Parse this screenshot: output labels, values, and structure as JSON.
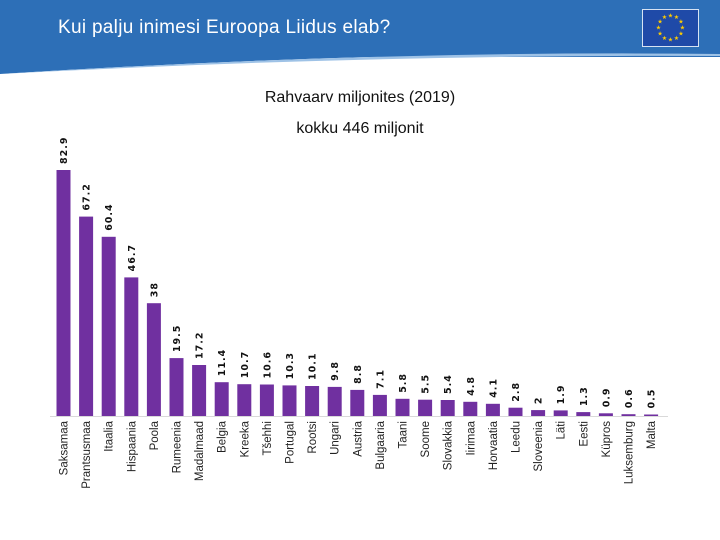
{
  "slide": {
    "title": "Kui palju inimesi Euroopa Liidus elab?",
    "accent_color": "#2d6fb7",
    "logo": "eu-flag-icon"
  },
  "chart_data": {
    "type": "bar",
    "title": "Rahvaarv miljonites (2019)",
    "subtitle": "kokku 446 miljonit",
    "xlabel": "",
    "ylabel": "",
    "ylim": [
      0,
      82.9
    ],
    "grid": false,
    "legend": "none",
    "bar_color": "#7030a0",
    "categories": [
      "Saksamaa",
      "Prantsusmaa",
      "Itaalia",
      "Hispaania",
      "Poola",
      "Rumeenia",
      "Madalmaad",
      "Belgia",
      "Kreeka",
      "Tšehhi",
      "Portugal",
      "Rootsi",
      "Ungari",
      "Austria",
      "Bulgaaria",
      "Taani",
      "Soome",
      "Slovakkia",
      "Iirimaa",
      "Horvaatia",
      "Leedu",
      "Sloveenia",
      "Läti",
      "Eesti",
      "Küpros",
      "Luksemburg",
      "Malta"
    ],
    "values": [
      82.9,
      67.2,
      60.4,
      46.7,
      38,
      19.5,
      17.2,
      11.4,
      10.7,
      10.6,
      10.3,
      10.1,
      9.8,
      8.8,
      7.1,
      5.8,
      5.5,
      5.4,
      4.8,
      4.1,
      2.8,
      2,
      1.9,
      1.3,
      0.9,
      0.6,
      0.5
    ],
    "value_labels": [
      "82.9",
      "67.2",
      "60.4",
      "46.7",
      "38",
      "19.5",
      "17.2",
      "11.4",
      "10.7",
      "10.6",
      "10.3",
      "10.1",
      "9.8",
      "8.8",
      "7.1",
      "5.8",
      "5.5",
      "5.4",
      "4.8",
      "4.1",
      "2.8",
      "2",
      "1.9",
      "1.3",
      "0.9",
      "0.6",
      "0.5"
    ]
  }
}
